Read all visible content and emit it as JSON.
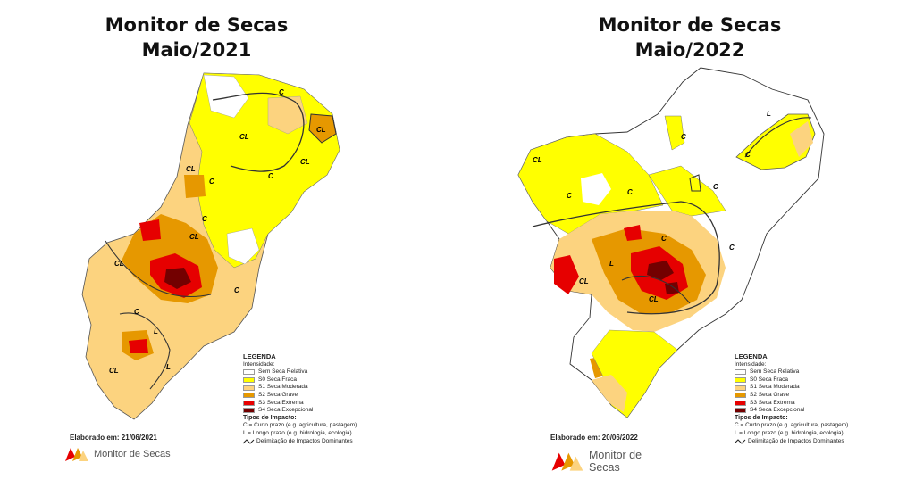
{
  "maps": [
    {
      "title_line1": "Monitor de Secas",
      "title_line2": "Maio/2021",
      "elaborado": "Elaborado em: 21/06/2021",
      "brand": "Monitor de Secas"
    },
    {
      "title_line1": "Monitor de Secas",
      "title_line2": "Maio/2022",
      "elaborado": "Elaborado em: 20/06/2022",
      "brand": "Monitor de Secas"
    }
  ],
  "legend": {
    "title": "LEGENDA",
    "intensity_label": "Intensidade:",
    "items": [
      {
        "label": "Sem Seca Relativa",
        "color": "#ffffff"
      },
      {
        "label": "S0 Seca Fraca",
        "color": "#ffff00"
      },
      {
        "label": "S1 Seca Moderada",
        "color": "#fcd37f"
      },
      {
        "label": "S2 Seca Grave",
        "color": "#e69800"
      },
      {
        "label": "S3 Seca Extrema",
        "color": "#e60000"
      },
      {
        "label": "S4 Seca Excepcional",
        "color": "#730000"
      }
    ],
    "impact_title": "Tipos de Impacto:",
    "impact_c": "C = Curto prazo (e.g. agricultura, pastagem)",
    "impact_l": "L = Longo prazo (e.g. hidrologia, ecologia)",
    "delimitation": "Delimitação de Impactos Dominantes"
  },
  "map_labels": {
    "c": "C",
    "l": "L",
    "cl": "CL"
  }
}
